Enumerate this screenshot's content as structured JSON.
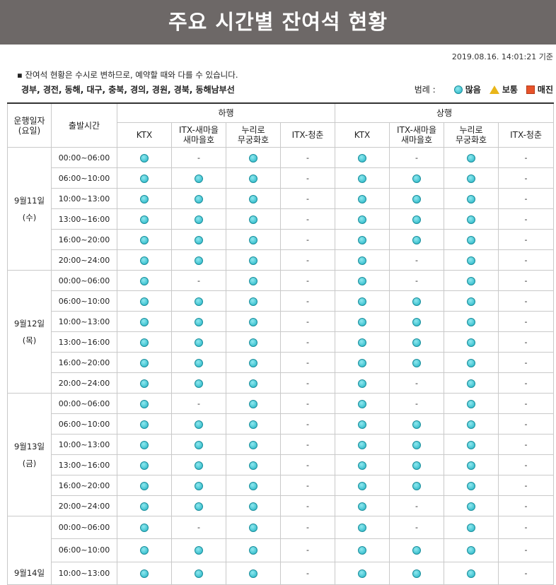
{
  "header": {
    "title": "주요 시간별 잔여석 현황"
  },
  "timestamp": "2019.08.16. 14:01:21 기준",
  "note": "▪ 잔여석 현황은 수시로 변하므로, 예약할 때와 다를 수 있습니다.",
  "routes": "경부, 경전, 동해, 대구, 충북, 경의, 경원, 경북, 동해남부선",
  "legend": {
    "label": "범례 :",
    "items": [
      {
        "label": "많음"
      },
      {
        "label": "보통"
      },
      {
        "label": "매진"
      }
    ]
  },
  "table": {
    "head": {
      "date": "운행일자\n(요일)",
      "time": "출발시간",
      "groups": [
        "하행",
        "상행"
      ],
      "trains": [
        "KTX",
        "ITX-새마을\n새마을호",
        "누리로\n무궁화호",
        "ITX-청춘",
        "KTX",
        "ITX-새마을\n새마을호",
        "누리로\n무궁화호",
        "ITX-청춘"
      ]
    },
    "days": [
      {
        "date": "9월11일",
        "day": "(수)",
        "rows": [
          {
            "time": "00:00~06:00",
            "cells": [
              "많음",
              "-",
              "많음",
              "-",
              "많음",
              "-",
              "많음",
              "-"
            ]
          },
          {
            "time": "06:00~10:00",
            "cells": [
              "많음",
              "많음",
              "많음",
              "-",
              "많음",
              "많음",
              "많음",
              "-"
            ]
          },
          {
            "time": "10:00~13:00",
            "cells": [
              "많음",
              "많음",
              "많음",
              "-",
              "많음",
              "많음",
              "많음",
              "-"
            ]
          },
          {
            "time": "13:00~16:00",
            "cells": [
              "많음",
              "많음",
              "많음",
              "-",
              "많음",
              "많음",
              "많음",
              "-"
            ]
          },
          {
            "time": "16:00~20:00",
            "cells": [
              "많음",
              "많음",
              "많음",
              "-",
              "많음",
              "많음",
              "많음",
              "-"
            ]
          },
          {
            "time": "20:00~24:00",
            "cells": [
              "많음",
              "많음",
              "많음",
              "-",
              "많음",
              "-",
              "많음",
              "-"
            ]
          }
        ]
      },
      {
        "date": "9월12일",
        "day": "(목)",
        "rows": [
          {
            "time": "00:00~06:00",
            "cells": [
              "많음",
              "-",
              "많음",
              "-",
              "많음",
              "-",
              "많음",
              "-"
            ]
          },
          {
            "time": "06:00~10:00",
            "cells": [
              "많음",
              "많음",
              "많음",
              "-",
              "많음",
              "많음",
              "많음",
              "-"
            ]
          },
          {
            "time": "10:00~13:00",
            "cells": [
              "많음",
              "많음",
              "많음",
              "-",
              "많음",
              "많음",
              "많음",
              "-"
            ]
          },
          {
            "time": "13:00~16:00",
            "cells": [
              "많음",
              "많음",
              "많음",
              "-",
              "많음",
              "많음",
              "많음",
              "-"
            ]
          },
          {
            "time": "16:00~20:00",
            "cells": [
              "많음",
              "많음",
              "많음",
              "-",
              "많음",
              "많음",
              "많음",
              "-"
            ]
          },
          {
            "time": "20:00~24:00",
            "cells": [
              "많음",
              "많음",
              "많음",
              "-",
              "많음",
              "-",
              "많음",
              "-"
            ]
          }
        ]
      },
      {
        "date": "9월13일",
        "day": "(금)",
        "rows": [
          {
            "time": "00:00~06:00",
            "cells": [
              "많음",
              "-",
              "많음",
              "-",
              "많음",
              "-",
              "많음",
              "-"
            ]
          },
          {
            "time": "06:00~10:00",
            "cells": [
              "많음",
              "많음",
              "많음",
              "-",
              "많음",
              "많음",
              "많음",
              "-"
            ]
          },
          {
            "time": "10:00~13:00",
            "cells": [
              "많음",
              "많음",
              "많음",
              "-",
              "많음",
              "많음",
              "많음",
              "-"
            ]
          },
          {
            "time": "13:00~16:00",
            "cells": [
              "많음",
              "많음",
              "많음",
              "-",
              "많음",
              "많음",
              "많음",
              "-"
            ]
          },
          {
            "time": "16:00~20:00",
            "cells": [
              "많음",
              "많음",
              "많음",
              "-",
              "많음",
              "많음",
              "많음",
              "-"
            ]
          },
          {
            "time": "20:00~24:00",
            "cells": [
              "많음",
              "많음",
              "많음",
              "-",
              "많음",
              "-",
              "많음",
              "-"
            ]
          }
        ]
      },
      {
        "date": "9월14일",
        "rows": [
          {
            "time": "00:00~06:00",
            "cells": [
              "많음",
              "-",
              "많음",
              "-",
              "많음",
              "-",
              "많음",
              "-"
            ]
          },
          {
            "time": "06:00~10:00",
            "cells": [
              "많음",
              "많음",
              "많음",
              "-",
              "많음",
              "많음",
              "많음",
              "-"
            ]
          },
          {
            "time": "10:00~13:00",
            "cells": [
              "많음",
              "많음",
              "많음",
              "-",
              "많음",
              "많음",
              "많음",
              "-"
            ]
          }
        ]
      }
    ]
  }
}
